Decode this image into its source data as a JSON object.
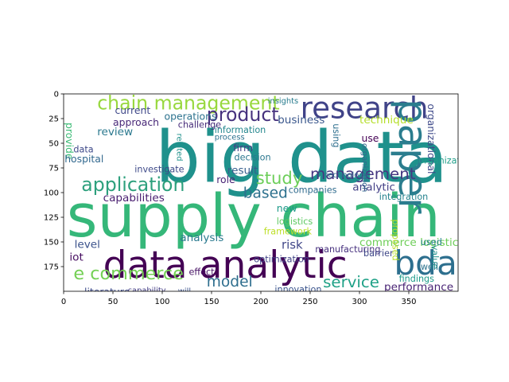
{
  "chart_data": {
    "type": "wordcloud",
    "title": "",
    "xlabel": "",
    "ylabel": "",
    "xlim": [
      0,
      400
    ],
    "ylim": [
      200,
      0
    ],
    "x_ticks": [
      0,
      50,
      100,
      150,
      200,
      250,
      300,
      350
    ],
    "y_ticks": [
      0,
      25,
      50,
      75,
      100,
      125,
      150,
      175
    ],
    "grid": false,
    "words": [
      {
        "text": "big data",
        "x": 93,
        "y": 30,
        "size": 72,
        "color": "#1f918c"
      },
      {
        "text": "supply chain",
        "x": 3,
        "y": 95,
        "size": 60,
        "color": "#35b779"
      },
      {
        "text": "data analytic",
        "x": 40,
        "y": 155,
        "size": 38,
        "color": "#440154"
      },
      {
        "text": "bda",
        "x": 335,
        "y": 155,
        "size": 34,
        "color": "#2d6f8e"
      },
      {
        "text": "research",
        "x": 240,
        "y": 0,
        "size": 30,
        "color": "#404388"
      },
      {
        "text": "paper",
        "x": 370,
        "y": 5,
        "size": 40,
        "color": "#2b7d8e",
        "vertical": true
      },
      {
        "text": "chain management",
        "x": 34,
        "y": 0,
        "size": 19,
        "color": "#98d83e"
      },
      {
        "text": "application",
        "x": 18,
        "y": 83,
        "size": 19,
        "color": "#2da07d"
      },
      {
        "text": "product",
        "x": 145,
        "y": 12,
        "size": 19,
        "color": "#46327e"
      },
      {
        "text": "management",
        "x": 250,
        "y": 73,
        "size": 16,
        "color": "#453781"
      },
      {
        "text": "study",
        "x": 195,
        "y": 77,
        "size": 17,
        "color": "#6cce59"
      },
      {
        "text": "e commerce",
        "x": 10,
        "y": 173,
        "size": 18,
        "color": "#74d055"
      },
      {
        "text": "service",
        "x": 263,
        "y": 183,
        "size": 16,
        "color": "#1fa187"
      },
      {
        "text": "model",
        "x": 145,
        "y": 183,
        "size": 15,
        "color": "#2e6e8e"
      },
      {
        "text": "based",
        "x": 182,
        "y": 93,
        "size": 15,
        "color": "#2d718e"
      },
      {
        "text": "business",
        "x": 217,
        "y": 21,
        "size": 11,
        "color": "#39568c"
      },
      {
        "text": "technique",
        "x": 300,
        "y": 21,
        "size": 11,
        "color": "#b5de2b"
      },
      {
        "text": "provide",
        "x": 10,
        "y": 29,
        "size": 10,
        "color": "#3bbb75",
        "vertical": true
      },
      {
        "text": "review",
        "x": 34,
        "y": 33,
        "size": 11,
        "color": "#2a788e"
      },
      {
        "text": "data",
        "x": 10,
        "y": 52,
        "size": 9,
        "color": "#3e4989"
      },
      {
        "text": "hospital",
        "x": 1,
        "y": 61,
        "size": 10,
        "color": "#31688e"
      },
      {
        "text": "capabilities",
        "x": 40,
        "y": 100,
        "size": 11,
        "color": "#481d6f"
      },
      {
        "text": "level",
        "x": 11,
        "y": 147,
        "size": 11,
        "color": "#3b528b"
      },
      {
        "text": "iot",
        "x": 6,
        "y": 160,
        "size": 11,
        "color": "#470e61"
      },
      {
        "text": "analysis",
        "x": 118,
        "y": 140,
        "size": 11,
        "color": "#29798e"
      },
      {
        "text": "current",
        "x": 52,
        "y": 12,
        "size": 10,
        "color": "#3f4889"
      },
      {
        "text": "approach",
        "x": 50,
        "y": 24,
        "size": 10,
        "color": "#482878"
      },
      {
        "text": "operations",
        "x": 102,
        "y": 18,
        "size": 10,
        "color": "#2c728e"
      },
      {
        "text": "challenge",
        "x": 116,
        "y": 27,
        "size": 9,
        "color": "#472c7a"
      },
      {
        "text": "information",
        "x": 153,
        "y": 32,
        "size": 9,
        "color": "#24878e"
      },
      {
        "text": "result",
        "x": 166,
        "y": 72,
        "size": 11,
        "color": "#355e8d"
      },
      {
        "text": "firm",
        "x": 172,
        "y": 50,
        "size": 10,
        "color": "#433e85"
      },
      {
        "text": "decision",
        "x": 173,
        "y": 60,
        "size": 9,
        "color": "#2a768e"
      },
      {
        "text": "investigate",
        "x": 72,
        "y": 72,
        "size": 9,
        "color": "#3e4a89"
      },
      {
        "text": "role",
        "x": 155,
        "y": 82,
        "size": 10,
        "color": "#482475"
      },
      {
        "text": "new",
        "x": 216,
        "y": 111,
        "size": 10,
        "color": "#1f9a8a"
      },
      {
        "text": "logistics",
        "x": 216,
        "y": 125,
        "size": 9,
        "color": "#5ec962"
      },
      {
        "text": "risk",
        "x": 221,
        "y": 147,
        "size": 12,
        "color": "#404688"
      },
      {
        "text": "framework",
        "x": 203,
        "y": 135,
        "size": 9,
        "color": "#bddf26"
      },
      {
        "text": "optimization",
        "x": 193,
        "y": 163,
        "size": 9,
        "color": "#414487"
      },
      {
        "text": "companies",
        "x": 228,
        "y": 93,
        "size": 9,
        "color": "#2f6b8e"
      },
      {
        "text": "analytic",
        "x": 293,
        "y": 89,
        "size": 11,
        "color": "#423f85"
      },
      {
        "text": "integration",
        "x": 320,
        "y": 100,
        "size": 9,
        "color": "#25838e"
      },
      {
        "text": "manufacturing",
        "x": 255,
        "y": 153,
        "size": 9,
        "color": "#46307e"
      },
      {
        "text": "commerce logistics",
        "x": 300,
        "y": 145,
        "size": 11,
        "color": "#6ece58"
      },
      {
        "text": "barrier",
        "x": 304,
        "y": 157,
        "size": 9,
        "color": "#3f4788"
      },
      {
        "text": "findings",
        "x": 340,
        "y": 183,
        "size": 9,
        "color": "#1e9b8a"
      },
      {
        "text": "performance",
        "x": 325,
        "y": 190,
        "size": 11,
        "color": "#482374"
      },
      {
        "text": "innovation",
        "x": 214,
        "y": 194,
        "size": 9,
        "color": "#3a548c"
      },
      {
        "text": "literature",
        "x": 21,
        "y": 196,
        "size": 10,
        "color": "#3e4c8a"
      },
      {
        "text": "capability",
        "x": 65,
        "y": 195,
        "size": 8,
        "color": "#433d84"
      },
      {
        "text": "will",
        "x": 116,
        "y": 196,
        "size": 8,
        "color": "#3b518b"
      },
      {
        "text": "effect",
        "x": 127,
        "y": 176,
        "size": 9,
        "color": "#471365"
      },
      {
        "text": "technology",
        "x": 265,
        "y": 78,
        "size": 8,
        "color": "#2d708e"
      },
      {
        "text": "insights",
        "x": 207,
        "y": 3,
        "size": 8,
        "color": "#287c8e"
      },
      {
        "text": "use",
        "x": 302,
        "y": 40,
        "size": 10,
        "color": "#440154"
      },
      {
        "text": "used",
        "x": 362,
        "y": 146,
        "size": 9,
        "color": "#26828e"
      },
      {
        "text": "well",
        "x": 362,
        "y": 171,
        "size": 9,
        "color": "#2c738e"
      },
      {
        "text": "organizational",
        "x": 377,
        "y": 10,
        "size": 10,
        "color": "#3e4989",
        "vertical": true
      },
      {
        "text": "organizational",
        "x": 360,
        "y": 63,
        "size": 9,
        "color": "#1f9e89"
      },
      {
        "text": "related",
        "x": 120,
        "y": 40,
        "size": 8,
        "color": "#21918c",
        "vertical": true
      },
      {
        "text": "process",
        "x": 153,
        "y": 40,
        "size": 8,
        "color": "#2c728e"
      },
      {
        "text": "proposed",
        "x": 340,
        "y": 127,
        "size": 9,
        "color": "#b8de29",
        "vertical": true
      },
      {
        "text": "value",
        "x": 380,
        "y": 153,
        "size": 9,
        "color": "#21908d",
        "vertical": true
      },
      {
        "text": "using",
        "x": 280,
        "y": 30,
        "size": 9,
        "color": "#2e6f8e",
        "vertical": true
      },
      {
        "text": "organization",
        "x": 308,
        "y": 50,
        "size": 8,
        "color": "#31678e",
        "vertical": true
      }
    ]
  }
}
